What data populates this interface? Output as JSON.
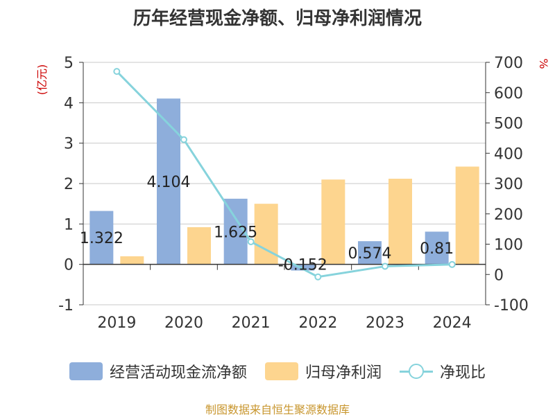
{
  "title": "历年经营现金净额、归母净利润情况",
  "source": "制图数据来自恒生聚源数据库",
  "colors": {
    "cash": "#8eaedb",
    "profit": "#fdd58f",
    "ratio": "#86d3dc",
    "left_unit": "#cc0000",
    "right_unit": "#cc0000",
    "grid": "#c8c8c8",
    "axis": "#333333",
    "text": "#333333"
  },
  "chart_data": {
    "type": "bar",
    "title": "历年经营现金净额、归母净利润情况",
    "categories": [
      "2019",
      "2020",
      "2021",
      "2022",
      "2023",
      "2024"
    ],
    "left_axis": {
      "unit": "(亿元)",
      "ylim": [
        -1,
        5
      ],
      "ticks": [
        -1,
        0,
        1,
        2,
        3,
        4,
        5
      ]
    },
    "right_axis": {
      "unit": "%",
      "ylim": [
        -100,
        700
      ],
      "ticks": [
        -100,
        0,
        100,
        200,
        300,
        400,
        500,
        600,
        700
      ]
    },
    "grid": true,
    "legend_position": "bottom",
    "series": [
      {
        "name": "经营活动现金流净额",
        "type": "bar",
        "axis": "left",
        "values": [
          1.322,
          4.104,
          1.625,
          -0.152,
          0.574,
          0.81
        ],
        "labels": [
          "1.322",
          "4.104",
          "1.625",
          "-0.152",
          "0.574",
          "0.81"
        ]
      },
      {
        "name": "归母净利润",
        "type": "bar",
        "axis": "left",
        "values": [
          0.2,
          0.92,
          1.5,
          2.1,
          2.12,
          2.42
        ]
      },
      {
        "name": "净现比",
        "type": "line",
        "axis": "right",
        "values": [
          670,
          445,
          108,
          -8,
          27,
          33
        ]
      }
    ]
  }
}
